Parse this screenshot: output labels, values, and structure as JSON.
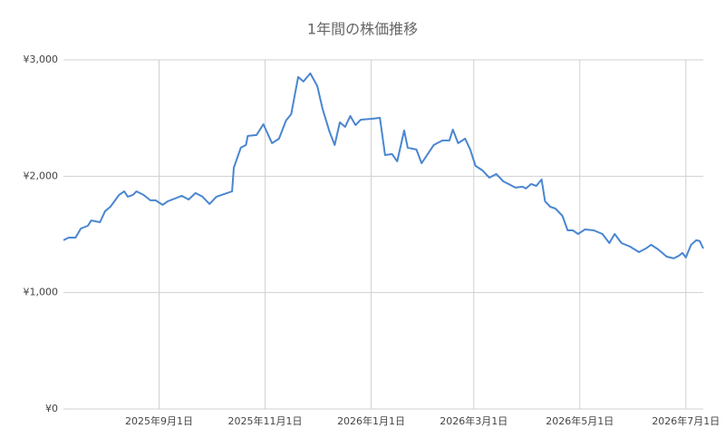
{
  "chart_data": {
    "type": "line",
    "title": "1年間の株価推移",
    "x": [
      "2025-07-08",
      "2025-07-11",
      "2025-07-15",
      "2025-07-18",
      "2025-07-22",
      "2025-07-24",
      "2025-07-29",
      "2025-08-01",
      "2025-08-04",
      "2025-08-09",
      "2025-08-12",
      "2025-08-14",
      "2025-08-17",
      "2025-08-19",
      "2025-08-23",
      "2025-08-27",
      "2025-08-30",
      "2025-09-03",
      "2025-09-06",
      "2025-09-10",
      "2025-09-14",
      "2025-09-18",
      "2025-09-22",
      "2025-09-26",
      "2025-09-30",
      "2025-10-04",
      "2025-10-07",
      "2025-10-13",
      "2025-10-14",
      "2025-10-18",
      "2025-10-21",
      "2025-10-22",
      "2025-10-27",
      "2025-10-31",
      "2025-11-05",
      "2025-11-09",
      "2025-11-13",
      "2025-11-16",
      "2025-11-20",
      "2025-11-23",
      "2025-11-27",
      "2025-12-01",
      "2025-12-04",
      "2025-12-08",
      "2025-12-11",
      "2025-12-14",
      "2025-12-17",
      "2025-12-20",
      "2025-12-23",
      "2025-12-26",
      "2026-01-02",
      "2026-01-06",
      "2026-01-09",
      "2026-01-13",
      "2026-01-16",
      "2026-01-20",
      "2026-01-22",
      "2026-01-27",
      "2026-01-30",
      "2026-02-06",
      "2026-02-11",
      "2026-02-15",
      "2026-02-17",
      "2026-02-20",
      "2026-02-24",
      "2026-02-27",
      "2026-03-02",
      "2026-03-06",
      "2026-03-10",
      "2026-03-14",
      "2026-03-18",
      "2026-03-21",
      "2026-03-25",
      "2026-03-29",
      "2026-03-31",
      "2026-04-03",
      "2026-04-06",
      "2026-04-09",
      "2026-04-11",
      "2026-04-14",
      "2026-04-17",
      "2026-04-21",
      "2026-04-24",
      "2026-04-27",
      "2026-04-30",
      "2026-05-04",
      "2026-05-09",
      "2026-05-14",
      "2026-05-18",
      "2026-05-21",
      "2026-05-25",
      "2026-05-30",
      "2026-06-04",
      "2026-06-08",
      "2026-06-11",
      "2026-06-15",
      "2026-06-20",
      "2026-06-24",
      "2026-06-27",
      "2026-06-29",
      "2026-07-01",
      "2026-07-04",
      "2026-07-07",
      "2026-07-09",
      "2026-07-11"
    ],
    "series": [
      {
        "color": "#4a86d0",
        "values": [
          1450,
          1473,
          1473,
          1551,
          1574,
          1620,
          1605,
          1700,
          1738,
          1840,
          1870,
          1824,
          1840,
          1870,
          1840,
          1793,
          1793,
          1754,
          1785,
          1808,
          1832,
          1800,
          1855,
          1824,
          1762,
          1824,
          1840,
          1870,
          2073,
          2245,
          2268,
          2346,
          2354,
          2447,
          2284,
          2323,
          2479,
          2533,
          2853,
          2814,
          2884,
          2775,
          2580,
          2385,
          2268,
          2463,
          2424,
          2518,
          2440,
          2486,
          2494,
          2502,
          2182,
          2190,
          2128,
          2393,
          2245,
          2229,
          2112,
          2268,
          2307,
          2307,
          2401,
          2284,
          2323,
          2229,
          2089,
          2050,
          1988,
          2019,
          1956,
          1933,
          1902,
          1910,
          1894,
          1933,
          1917,
          1972,
          1785,
          1738,
          1722,
          1660,
          1535,
          1535,
          1504,
          1543,
          1535,
          1504,
          1426,
          1504,
          1426,
          1395,
          1348,
          1379,
          1411,
          1372,
          1309,
          1294,
          1317,
          1341,
          1302,
          1411,
          1450,
          1442,
          1379
        ]
      }
    ],
    "xlim": [
      "2025-07-08",
      "2026-07-11"
    ],
    "xticks": [
      {
        "value": "2025-09-01",
        "label": "2025年9月1日"
      },
      {
        "value": "2025-11-01",
        "label": "2025年11月1日"
      },
      {
        "value": "2026-01-01",
        "label": "2026年1月1日"
      },
      {
        "value": "2026-03-01",
        "label": "2026年3月1日"
      },
      {
        "value": "2026-05-01",
        "label": "2026年5月1日"
      },
      {
        "value": "2026-07-01",
        "label": "2026年7月1日"
      }
    ],
    "ylim": [
      0,
      3000
    ],
    "yticks": [
      {
        "value": 0,
        "label": "¥0"
      },
      {
        "value": 1000,
        "label": "¥1,000"
      },
      {
        "value": 2000,
        "label": "¥2,000"
      },
      {
        "value": 3000,
        "label": "¥3,000"
      }
    ],
    "grid": true
  }
}
